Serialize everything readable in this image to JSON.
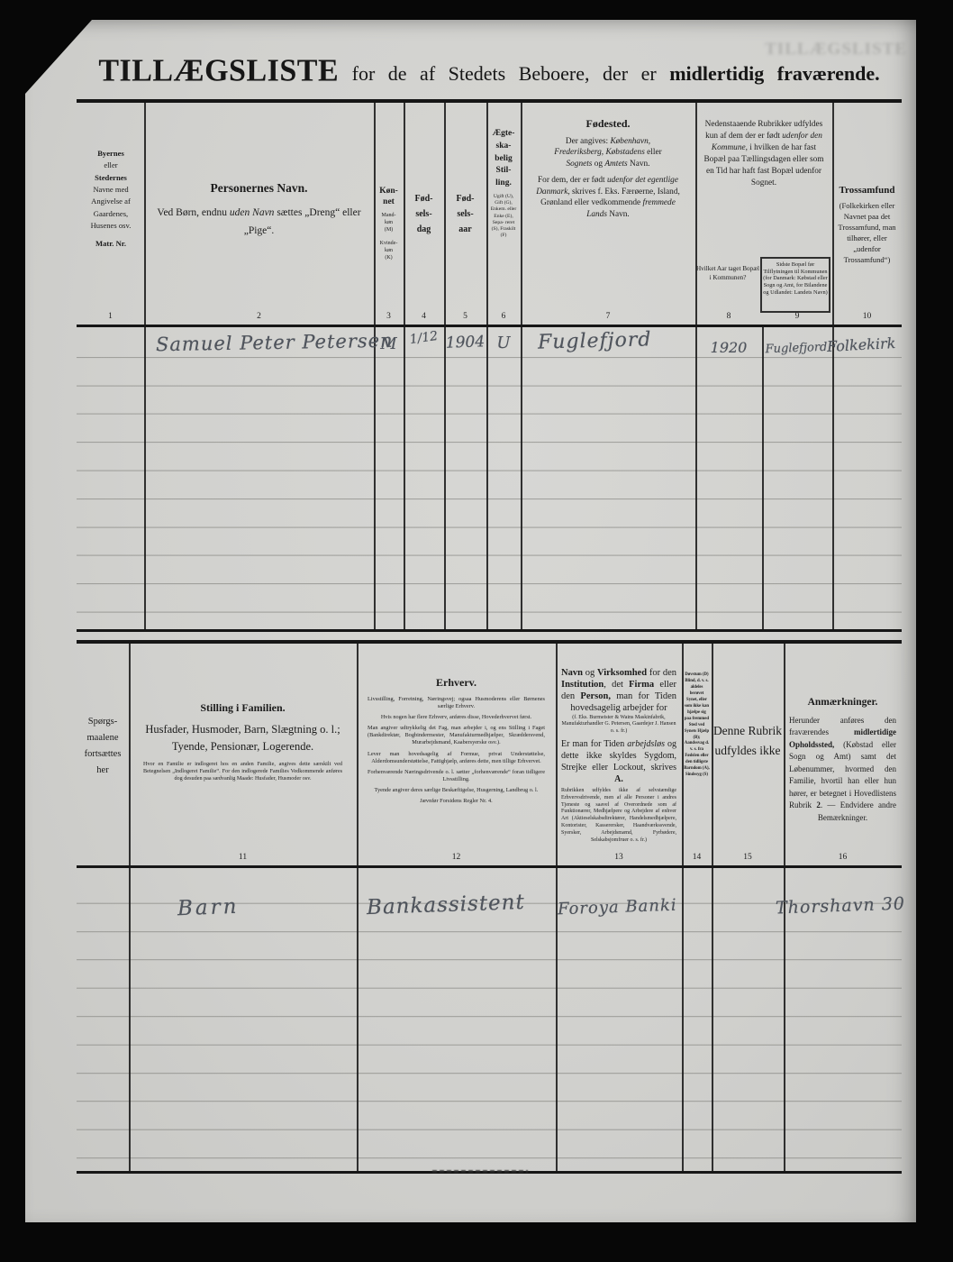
{
  "page": {
    "ghost_text": "TILLÆGSLISTE",
    "title_segments": [
      {
        "t": "TILLÆGSLISTE",
        "b": true,
        "c": "big"
      },
      {
        "t": " for de af Stedets Beboere, der er ",
        "c": "mid"
      },
      {
        "t": "midlertidig fraværende.",
        "b": true,
        "c": "mid"
      }
    ]
  },
  "t1": {
    "h": {
      "c1": [
        {
          "t": "Byernes",
          "b": true,
          "c": "blk"
        },
        {
          "t": "eller",
          "c": "blk"
        },
        {
          "t": "Stedernes",
          "b": true,
          "c": "blk"
        },
        {
          "t": "Navne med",
          "c": "blk"
        },
        {
          "t": "Angivelse af",
          "c": "blk"
        },
        {
          "t": "Gaardenes,",
          "c": "blk"
        },
        {
          "t": "Husenes osv.",
          "c": "blk"
        },
        {
          "t": "Matr. Nr.",
          "b": true,
          "c": "gap blk"
        }
      ],
      "c2": {
        "title": "Personernes Navn.",
        "sub": [
          {
            "t": "Ved Børn, endnu "
          },
          {
            "t": "uden Navn",
            "i": true
          },
          {
            "t": " sættes „Dreng“ eller „Pige“."
          }
        ]
      },
      "c3": {
        "main": [
          {
            "t": "Køn-",
            "b": true,
            "c": "blk"
          },
          {
            "t": "net",
            "b": true,
            "c": "blk"
          }
        ],
        "sub": [
          {
            "t": "Mand-",
            "c": "blk"
          },
          {
            "t": "køn",
            "c": "blk"
          },
          {
            "t": "(M)",
            "c": "blk"
          },
          {
            "t": "Kvinde-",
            "c": "gap blk"
          },
          {
            "t": "køn",
            "c": "blk"
          },
          {
            "t": "(K)",
            "c": "blk"
          }
        ]
      },
      "c4": [
        {
          "t": "Fød-",
          "b": true,
          "c": "blk"
        },
        {
          "t": "sels-",
          "b": true,
          "c": "blk"
        },
        {
          "t": "dag",
          "b": true,
          "c": "blk"
        }
      ],
      "c5": [
        {
          "t": "Fød-",
          "b": true,
          "c": "blk"
        },
        {
          "t": "sels-",
          "b": true,
          "c": "blk"
        },
        {
          "t": "aar",
          "b": true,
          "c": "blk"
        }
      ],
      "c6": {
        "main": [
          {
            "t": "Ægte-",
            "b": true,
            "c": "blk"
          },
          {
            "t": "ska-",
            "b": true,
            "c": "blk"
          },
          {
            "t": "belig",
            "b": true,
            "c": "blk"
          },
          {
            "t": "Stil-",
            "b": true,
            "c": "blk"
          },
          {
            "t": "ling.",
            "b": true,
            "c": "blk"
          }
        ],
        "sub": "Ugift (U), Gift (G), Enkem. eller Enke (E), Sepa- reret (S), Fraskilt (F)"
      },
      "c7": {
        "title": "Fødested.",
        "p1": [
          {
            "t": "Der angives: "
          },
          {
            "t": "København, Frederiksberg, Købstadens",
            "i": true
          },
          {
            "t": " eller "
          },
          {
            "t": "Sognets",
            "i": true
          },
          {
            "t": " og "
          },
          {
            "t": "Amtets",
            "i": true
          },
          {
            "t": " Navn."
          }
        ],
        "p2": [
          {
            "t": "For dem, der er født "
          },
          {
            "t": "udenfor det egentlige Danmark,",
            "i": true
          },
          {
            "t": " skrives f. Eks. Færøerne, Island, Grønland eller vedkommende "
          },
          {
            "t": "fremmede Lands",
            "i": true
          },
          {
            "t": " Navn."
          }
        ]
      },
      "c8_9": [
        {
          "t": "Nedenstaaende Rubrikker udfyldes kun af dem der er født "
        },
        {
          "t": "udenfor den Kommune,",
          "i": true
        },
        {
          "t": " i hvilken de har fast Bopæl paa Tællingsdagen eller som en Tid har haft fast Bopæl udenfor Sognet."
        }
      ],
      "c8_sub": "Hvilket Aar taget Bopæl i Kommunen?",
      "c9_sub": "Sidste Bopæl før Tilflytningen til Kommunen (for Danmark: Købstad eller Sogn og Amt, for Bilandene og Udlandet: Landets Navn)",
      "c10": {
        "title": "Trossamfund",
        "sub": "(Folkekirken eller Navnet paa det Trossamfund, man tilhører, eller „udenfor Trossamfund“)"
      }
    },
    "numbers": [
      "1",
      "2",
      "3",
      "4",
      "5",
      "6",
      "7",
      "8",
      "9",
      "10"
    ],
    "rows": [
      {
        "name": "Samuel Peter Petersen",
        "sex": "M",
        "birth_day": "1/12",
        "birth_year": "1904",
        "marital_status": "U",
        "birthplace": "Fuglefjord",
        "year_settled": "1920",
        "last_residence": "Fuglefjord",
        "religion": "Folkekirk"
      }
    ]
  },
  "t2": {
    "side_label": [
      {
        "t": "Spørgs-",
        "c": "blk"
      },
      {
        "t": "maalene",
        "c": "blk"
      },
      {
        "t": "fortsættes",
        "c": "blk"
      },
      {
        "t": "her",
        "c": "blk"
      }
    ],
    "h": {
      "c11": {
        "title": "Stilling i Familien.",
        "sub": "Husfader, Husmoder, Barn, Slægtning o. l.; Tyende, Pensionær, Logerende.",
        "note": "Hvor en Familie er indlogeret hos en anden Familie, angives dette særskilt ved Betegnelsen „Indlogeret Familie“. For den indlogerede Families Vedkommende anføres dog desuden paa sædvanlig Maade: Husfader, Husmoder osv."
      },
      "c12": {
        "title": "Erhverv.",
        "notes": [
          "Livsstilling, Forretning, Næringsvej; ogsaa Husmoderens eller Børnenes særlige Erhverv.",
          "Hvis nogen har flere Erhverv, anføres disse, Hovederhvervet først.",
          "Man angiver udtrykkelig det Fag, man arbejder i, og ens Stilling i Faget (Bankdirektør, Bogbindermester, Manufakturmedhjælper, Skræddersvend, Murarbejdsmand, Kaabersyerske osv.).",
          "Lever man hovedsagelig af Formue, privat Understøttelse, Alderdomsunderstøttelse, Fattighjælp, anføres dette, men tillige Erhvervet.",
          "Forhenværende Næringsdrivende o. l. sætter „forhenværende“ foran tidligere Livsstilling.",
          "Tyende angiver deres særlige Beskæftigelse, Husgerning, Landbrug o. l.",
          "Jævnfør Forsidens Regler Nr. 4."
        ]
      },
      "c13": {
        "lead": [
          {
            "t": "Navn",
            "b": true
          },
          {
            "t": " og "
          },
          {
            "t": "Virksomhed",
            "b": true
          },
          {
            "t": " for den "
          },
          {
            "t": "Institution",
            "b": true
          },
          {
            "t": ", det "
          },
          {
            "t": "Firma",
            "b": true
          },
          {
            "t": " eller den "
          },
          {
            "t": "Person,",
            "b": true
          },
          {
            "t": " man for Tiden hovedsagelig arbejder for"
          }
        ],
        "note1": "(f. Eks. Burmeister & Wains Maskinfabrik, Manufakturhandler G. Petersen, Gaardejer J. Hansen o. s. fr.)",
        "p2": [
          {
            "t": "Er man for Tiden "
          },
          {
            "t": "arbejdsløs",
            "i": true
          },
          {
            "t": " og dette ikke skyldes Sygdom, Strejke eller Lockout, skrives "
          },
          {
            "t": "A.",
            "b": true
          }
        ],
        "note2": "Rubrikken udfyldes ikke af selvstændige Erhvervsdrivende, men af alle Personer i andres Tjeneste og saavel af Overordnede som af Funktionærer, Medhjælpere og Arbejdere af enhver Art (Aktieselskabsdirektører, Handelsmedhjælpere, Kontorister, Kasserersker, Haandværkssvende, Syersker, Arbejdsmænd, Fyrbødere, Selskabsjomfruer o. s. fr.)"
      },
      "c14": "Døvstum (D) Blind, d. v. s. aldeles berøvet Synet, eller som ikke kan hjælpe sig paa fremmed Sted ved Synets Hjælp (B); Aandssvag d. v. s. fra Fødslen eller den tidligste Barndom (A), Sindssyg (S)",
      "c15": "Denne Rubrik udfyldes ikke",
      "c16": {
        "title": "Anmærkninger.",
        "body": [
          {
            "t": "Herunder anføres den fraværendes "
          },
          {
            "t": "midlertidige Opholdssted,",
            "b": true
          },
          {
            "t": " (Købstad eller Sogn og Amt) samt det Løbenummer, hvormed den Familie, hvortil han eller hun hører, er betegnet i Hovedlistens Rubrik "
          },
          {
            "t": "2",
            "b": true
          },
          {
            "t": ". — Endvidere andre Bemærkninger."
          }
        ]
      }
    },
    "numbers": [
      "11",
      "12",
      "13",
      "14",
      "15",
      "16"
    ],
    "rows": [
      {
        "family_position": "Barn",
        "occupation": "Bankassistent",
        "employer": "Foroya Banki",
        "remarks": "Thorshavn 30"
      }
    ]
  }
}
